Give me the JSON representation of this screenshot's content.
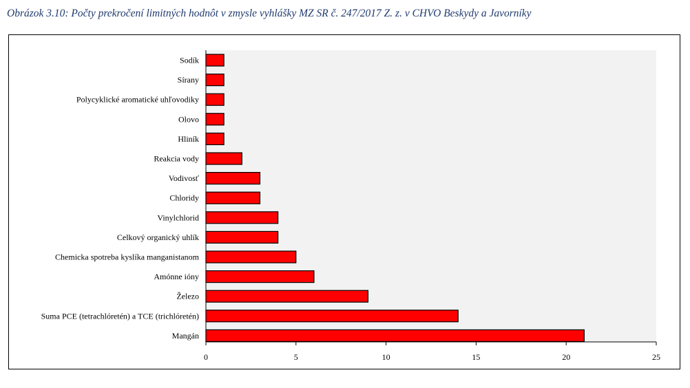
{
  "caption": "Obrázok 3.10: Počty prekročení limitných hodnôt v zmysle vyhlášky MZ SR č. 247/2017 Z. z. v CHVO Beskydy a Javorníky",
  "chart_data": {
    "type": "bar",
    "orientation": "horizontal",
    "categories": [
      "Sodík",
      "Sírany",
      "Polycyklické aromatické uhľovodiky",
      "Olovo",
      "Hliník",
      "Reakcia vody",
      "Vodivosť",
      "Chloridy",
      "Vinylchlorid",
      "Celkový organický uhlík",
      "Chemicka spotreba kyslíka manganistanom",
      "Amónne ióny",
      "Železo",
      "Suma  PCE (tetrachlóretén) a TCE (trichlóretén)",
      "Mangán"
    ],
    "values": [
      1,
      1,
      1,
      1,
      1,
      2,
      3,
      3,
      4,
      4,
      5,
      6,
      9,
      14,
      21
    ],
    "xlim": [
      0,
      25
    ],
    "xticks": [
      0,
      5,
      10,
      15,
      20,
      25
    ],
    "title": "",
    "xlabel": "",
    "ylabel": "",
    "grid": false,
    "legend": "none",
    "bar_color": "#ff0000",
    "bar_edge_color": "#000000",
    "plot_background": "#f2f2f2"
  }
}
